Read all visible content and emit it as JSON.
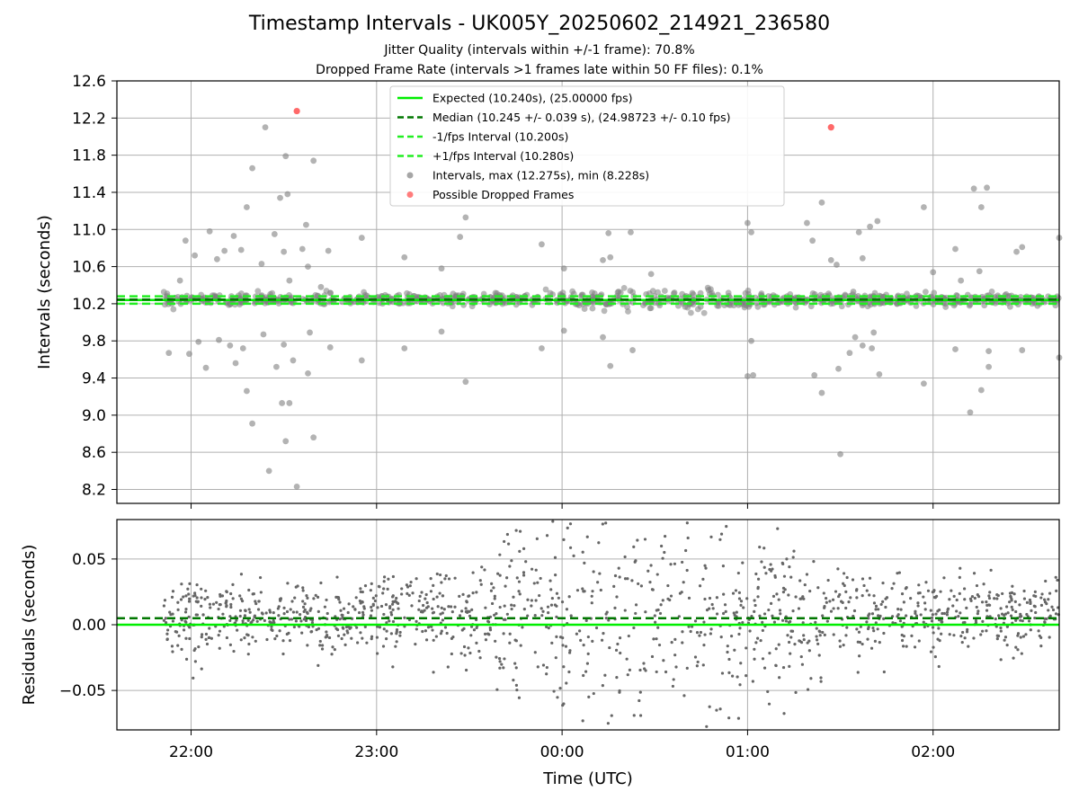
{
  "figure": {
    "title": "Timestamp Intervals - UK005Y_20250602_214921_236580",
    "subtitle_1": "Jitter Quality (intervals within +/-1 frame): 70.8%",
    "subtitle_2": "Dropped Frame Rate (intervals >1 frames late within 50 FF files): 0.1%"
  },
  "colors": {
    "expected": "#00ee00",
    "median": "#007700",
    "bounds": "#22ee22",
    "intervals": "#808080",
    "dropped": "#ff4444",
    "residuals": "#666666",
    "grid": "#b0b0b0"
  },
  "chart_data": [
    {
      "type": "scatter",
      "xlabel": "",
      "ylabel": "Intervals (seconds)",
      "x_range_hours": [
        21.6,
        26.68
      ],
      "ylim": [
        8.05,
        12.6
      ],
      "y_ticks": [
        "8.2",
        "8.6",
        "9.0",
        "9.4",
        "9.8",
        "10.2",
        "10.6",
        "11.0",
        "11.4",
        "11.8",
        "12.2",
        "12.6"
      ],
      "grid": true,
      "legend_position": "upper center",
      "lines": [
        {
          "name": "Expected (10.240s), (25.00000 fps)",
          "y": 10.24,
          "style": "solid",
          "color": "#00ee00"
        },
        {
          "name": "Median (10.245 +/- 0.039 s), (24.98723 +/- 0.10 fps)",
          "y": 10.245,
          "style": "dashed",
          "color": "#007700"
        },
        {
          "name": "-1/fps Interval (10.200s)",
          "y": 10.2,
          "style": "dashed",
          "color": "#22ee22"
        },
        {
          "name": "+1/fps Interval (10.280s)",
          "y": 10.28,
          "style": "dashed",
          "color": "#22ee22"
        }
      ],
      "series": [
        {
          "name": "Intervals, max (12.275s), min (8.228s)",
          "color": "#808080",
          "points": [
            [
              21.88,
              9.67
            ],
            [
              21.94,
              10.45
            ],
            [
              21.97,
              10.88
            ],
            [
              21.99,
              9.66
            ],
            [
              22.02,
              10.72
            ],
            [
              22.04,
              9.79
            ],
            [
              22.08,
              9.51
            ],
            [
              22.1,
              10.98
            ],
            [
              22.14,
              10.68
            ],
            [
              22.15,
              9.81
            ],
            [
              22.18,
              10.77
            ],
            [
              22.21,
              9.75
            ],
            [
              22.23,
              10.93
            ],
            [
              22.24,
              9.56
            ],
            [
              22.27,
              10.78
            ],
            [
              22.28,
              9.72
            ],
            [
              22.3,
              11.24
            ],
            [
              22.3,
              9.26
            ],
            [
              22.33,
              11.66
            ],
            [
              22.33,
              8.91
            ],
            [
              22.38,
              10.63
            ],
            [
              22.39,
              9.87
            ],
            [
              22.4,
              12.1
            ],
            [
              22.42,
              8.4
            ],
            [
              22.45,
              10.95
            ],
            [
              22.46,
              9.52
            ],
            [
              22.48,
              11.34
            ],
            [
              22.49,
              9.13
            ],
            [
              22.5,
              10.76
            ],
            [
              22.5,
              9.76
            ],
            [
              22.51,
              11.79
            ],
            [
              22.51,
              8.72
            ],
            [
              22.52,
              11.38
            ],
            [
              22.53,
              10.45
            ],
            [
              22.53,
              9.13
            ],
            [
              22.55,
              9.59
            ],
            [
              22.57,
              8.23
            ],
            [
              22.6,
              10.79
            ],
            [
              22.62,
              11.05
            ],
            [
              22.63,
              9.45
            ],
            [
              22.63,
              10.6
            ],
            [
              22.64,
              9.89
            ],
            [
              22.66,
              11.74
            ],
            [
              22.66,
              8.76
            ],
            [
              22.7,
              10.38
            ],
            [
              22.74,
              10.77
            ],
            [
              22.75,
              9.73
            ],
            [
              22.92,
              10.91
            ],
            [
              22.92,
              9.59
            ],
            [
              23.15,
              10.7
            ],
            [
              23.15,
              9.72
            ],
            [
              23.35,
              10.58
            ],
            [
              23.35,
              9.9
            ],
            [
              23.45,
              10.92
            ],
            [
              23.48,
              11.13
            ],
            [
              23.48,
              9.36
            ],
            [
              23.89,
              10.84
            ],
            [
              23.89,
              9.72
            ],
            [
              24.01,
              10.58
            ],
            [
              24.01,
              9.91
            ],
            [
              24.22,
              10.67
            ],
            [
              24.22,
              9.84
            ],
            [
              24.25,
              10.96
            ],
            [
              24.26,
              9.53
            ],
            [
              24.26,
              10.7
            ],
            [
              24.37,
              10.97
            ],
            [
              24.38,
              9.7
            ],
            [
              24.48,
              10.52
            ],
            [
              25.0,
              11.07
            ],
            [
              25.02,
              9.8
            ],
            [
              25.02,
              10.97
            ],
            [
              25.03,
              9.43
            ],
            [
              25.0,
              9.42
            ],
            [
              25.32,
              11.07
            ],
            [
              25.35,
              10.88
            ],
            [
              25.36,
              9.43
            ],
            [
              25.4,
              11.29
            ],
            [
              25.4,
              9.24
            ],
            [
              25.45,
              10.67
            ],
            [
              25.48,
              10.62
            ],
            [
              25.49,
              9.5
            ],
            [
              25.5,
              8.58
            ],
            [
              25.55,
              9.67
            ],
            [
              25.57,
              10.33
            ],
            [
              25.58,
              9.84
            ],
            [
              25.6,
              10.97
            ],
            [
              25.62,
              10.69
            ],
            [
              25.62,
              9.75
            ],
            [
              25.66,
              11.03
            ],
            [
              25.67,
              9.72
            ],
            [
              25.68,
              9.89
            ],
            [
              25.7,
              11.09
            ],
            [
              25.71,
              9.44
            ],
            [
              25.95,
              11.24
            ],
            [
              25.95,
              9.34
            ],
            [
              26.12,
              10.79
            ],
            [
              26.12,
              9.71
            ],
            [
              26.22,
              11.44
            ],
            [
              26.26,
              11.24
            ],
            [
              26.26,
              9.27
            ],
            [
              26.29,
              11.45
            ],
            [
              26.3,
              9.52
            ],
            [
              26.3,
              9.69
            ],
            [
              26.45,
              10.76
            ],
            [
              26.48,
              10.81
            ],
            [
              26.48,
              9.7
            ],
            [
              26.68,
              10.91
            ],
            [
              26.68,
              9.62
            ],
            [
              26.2,
              9.03
            ],
            [
              26.25,
              10.55
            ],
            [
              26.0,
              10.54
            ],
            [
              26.15,
              10.45
            ]
          ]
        },
        {
          "name": "Possible Dropped Frames",
          "color": "#ff4444",
          "points": [
            [
              22.57,
              12.275
            ],
            [
              25.45,
              12.1
            ]
          ]
        }
      ]
    },
    {
      "type": "scatter",
      "xlabel": "Time (UTC)",
      "ylabel": "Residuals (seconds)",
      "x_range_hours": [
        21.6,
        26.68
      ],
      "x_ticks": [
        {
          "value": 22,
          "label": "22:00"
        },
        {
          "value": 23,
          "label": "23:00"
        },
        {
          "value": 24,
          "label": "00:00"
        },
        {
          "value": 25,
          "label": "01:00"
        },
        {
          "value": 26,
          "label": "02:00"
        }
      ],
      "ylim": [
        -0.08,
        0.08
      ],
      "y_ticks": [
        "0.05",
        "0.00",
        "−0.05"
      ],
      "y_tick_values": [
        0.05,
        0.0,
        -0.05
      ],
      "grid": true,
      "lines": [
        {
          "y": 0.0,
          "style": "solid",
          "color": "#00ee00"
        },
        {
          "y": 0.005,
          "style": "dashed",
          "color": "#007700"
        }
      ],
      "series": [
        {
          "name": "Residuals",
          "color": "#666666",
          "description_points": "dense scatter of approx. 1400 residual values between -0.08 and 0.08 s, tighter near the start and end, widest spread 23:30-01:00"
        }
      ]
    }
  ]
}
